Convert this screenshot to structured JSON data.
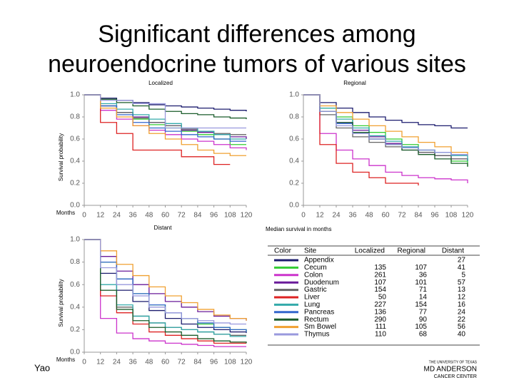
{
  "title": [
    "Significant differences among",
    "neuroendocrine tumors of various sites"
  ],
  "author": "Yao",
  "logo": [
    "THE UNIVERSITY OF TEXAS",
    "MD ANDERSON",
    "CANCER CENTER"
  ],
  "chart_data": [
    {
      "type": "line",
      "step": true,
      "title": "Localized",
      "xlabel": "Months",
      "ylabel": "Survival probability",
      "x": [
        0,
        12,
        24,
        36,
        48,
        60,
        72,
        84,
        96,
        108,
        120
      ],
      "xlim": [
        0,
        120
      ],
      "xticks": [
        0,
        12,
        24,
        36,
        48,
        60,
        72,
        84,
        96,
        108,
        120
      ],
      "ylim": [
        0,
        1
      ],
      "yticks": [
        {
          "value": 0,
          "label": "0.0"
        },
        0.2,
        0.4,
        0.6,
        0.8,
        {
          "value": 1,
          "label": "1.0"
        }
      ],
      "series": [
        {
          "name": "Appendix",
          "color": "#1c1c6e",
          "values": [
            1,
            0.97,
            0.95,
            0.93,
            0.91,
            0.9,
            0.89,
            0.88,
            0.87,
            0.86,
            0.85
          ]
        },
        {
          "name": "Cecum",
          "color": "#33cc33",
          "values": [
            1,
            0.9,
            0.84,
            0.78,
            0.73,
            0.7,
            0.67,
            0.64,
            0.6,
            0.55,
            0.55
          ]
        },
        {
          "name": "Colon",
          "color": "#cc33cc",
          "values": [
            1,
            0.86,
            0.78,
            0.72,
            0.68,
            0.64,
            0.6,
            0.58,
            0.55,
            0.52,
            0.5
          ]
        },
        {
          "name": "Duodenum",
          "color": "#6a1b9a",
          "values": [
            1,
            0.9,
            0.84,
            0.8,
            0.75,
            0.72,
            0.68,
            0.66,
            0.64,
            0.62,
            0.6
          ]
        },
        {
          "name": "Gastric",
          "color": "#666666",
          "values": [
            1,
            0.9,
            0.84,
            0.79,
            0.75,
            0.72,
            0.69,
            0.67,
            0.65,
            0.64,
            0.64
          ]
        },
        {
          "name": "Liver",
          "color": "#dd2222",
          "values": [
            1,
            0.75,
            0.65,
            0.5,
            0.5,
            0.5,
            0.44,
            0.44,
            0.37,
            0.37,
            null
          ]
        },
        {
          "name": "Lung",
          "color": "#33aaaa",
          "values": [
            1,
            0.92,
            0.87,
            0.82,
            0.78,
            0.74,
            0.7,
            0.67,
            0.64,
            0.6,
            0.6
          ]
        },
        {
          "name": "Pancreas",
          "color": "#3366cc",
          "values": [
            1,
            0.9,
            0.82,
            0.75,
            0.7,
            0.67,
            0.64,
            0.62,
            0.6,
            0.58,
            0.58
          ]
        },
        {
          "name": "Rectum",
          "color": "#1a5c2a",
          "values": [
            1,
            0.96,
            0.93,
            0.9,
            0.87,
            0.85,
            0.83,
            0.82,
            0.8,
            0.79,
            0.78
          ]
        },
        {
          "name": "Sm Bowel",
          "color": "#f0a030",
          "values": [
            1,
            0.88,
            0.8,
            0.72,
            0.65,
            0.6,
            0.55,
            0.5,
            0.47,
            0.45,
            0.45
          ]
        },
        {
          "name": "Thymus",
          "color": "#9999dd",
          "values": [
            1,
            0.95,
            0.95,
            0.92,
            0.92,
            0.7,
            0.7,
            0.7,
            0.7,
            0.7,
            0.7
          ]
        }
      ]
    },
    {
      "type": "line",
      "step": true,
      "title": "Regional",
      "x": [
        0,
        12,
        24,
        36,
        48,
        60,
        72,
        84,
        96,
        108,
        120
      ],
      "xlim": [
        0,
        120
      ],
      "xticks": [
        0,
        12,
        24,
        36,
        48,
        60,
        72,
        84,
        96,
        108,
        120
      ],
      "ylim": [
        0,
        1
      ],
      "yticks": [
        {
          "value": 0,
          "label": "0.0"
        },
        0.2,
        0.4,
        0.6,
        0.8,
        {
          "value": 1,
          "label": "1.0"
        }
      ],
      "series": [
        {
          "color": "#1c1c6e",
          "values": [
            1,
            0.93,
            0.88,
            0.84,
            0.8,
            0.77,
            0.75,
            0.73,
            0.72,
            0.7,
            0.7
          ]
        },
        {
          "color": "#33cc33",
          "values": [
            1,
            0.88,
            0.8,
            0.72,
            0.66,
            0.6,
            0.55,
            0.5,
            0.45,
            0.4,
            0.35
          ]
        },
        {
          "color": "#cc33cc",
          "values": [
            1,
            0.65,
            0.5,
            0.42,
            0.36,
            0.3,
            0.27,
            0.25,
            0.24,
            0.23,
            0.2
          ]
        },
        {
          "color": "#6a1b9a",
          "values": [
            1,
            0.85,
            0.75,
            0.68,
            0.62,
            0.56,
            0.52,
            0.48,
            0.45,
            0.42,
            0.4
          ]
        },
        {
          "color": "#666666",
          "values": [
            1,
            0.82,
            0.7,
            0.62,
            0.57,
            0.53,
            0.5,
            0.48,
            0.45,
            0.42,
            0.4
          ]
        },
        {
          "color": "#dd2222",
          "values": [
            1,
            0.55,
            0.38,
            0.3,
            0.25,
            0.2,
            0.2,
            0.18,
            null,
            null,
            null
          ]
        },
        {
          "color": "#33aaaa",
          "values": [
            1,
            0.88,
            0.78,
            0.7,
            0.63,
            0.58,
            0.53,
            0.5,
            0.48,
            0.45,
            0.4
          ]
        },
        {
          "color": "#3366cc",
          "values": [
            1,
            0.85,
            0.74,
            0.66,
            0.6,
            0.55,
            0.52,
            0.5,
            0.48,
            0.46,
            0.45
          ]
        },
        {
          "color": "#1a5c2a",
          "values": [
            1,
            0.85,
            0.75,
            0.66,
            0.6,
            0.55,
            0.5,
            0.46,
            0.42,
            0.38,
            0.35
          ]
        },
        {
          "color": "#f0a030",
          "values": [
            1,
            0.9,
            0.84,
            0.78,
            0.72,
            0.67,
            0.62,
            0.57,
            0.53,
            0.48,
            0.45
          ]
        },
        {
          "color": "#9999dd",
          "values": [
            1,
            0.85,
            0.72,
            0.65,
            0.6,
            0.55,
            0.52,
            0.5,
            0.48,
            0.46,
            0.45
          ]
        }
      ]
    },
    {
      "type": "line",
      "step": true,
      "title": "Distant",
      "xlabel": "Months",
      "ylabel": "Survival probability",
      "x": [
        0,
        12,
        24,
        36,
        48,
        60,
        72,
        84,
        96,
        108,
        120
      ],
      "xlim": [
        0,
        120
      ],
      "xticks": [
        0,
        12,
        24,
        36,
        48,
        60,
        72,
        84,
        96,
        108,
        120
      ],
      "ylim": [
        0,
        1
      ],
      "yticks": [
        {
          "value": 0,
          "label": "0.0"
        },
        0.2,
        0.4,
        0.6,
        0.8,
        {
          "value": 1,
          "label": "1.0"
        }
      ],
      "series": [
        {
          "color": "#1c1c6e",
          "values": [
            1,
            0.7,
            0.55,
            0.45,
            0.37,
            0.3,
            0.25,
            0.22,
            0.2,
            0.18,
            0.17
          ]
        },
        {
          "color": "#33cc33",
          "values": [
            1,
            0.8,
            0.65,
            0.52,
            0.42,
            0.35,
            0.3,
            0.25,
            0.22,
            0.2,
            0.18
          ]
        },
        {
          "color": "#cc33cc",
          "values": [
            1,
            0.3,
            0.17,
            0.12,
            0.1,
            0.08,
            0.07,
            0.06,
            0.05,
            0.05,
            0.05
          ]
        },
        {
          "color": "#6a1b9a",
          "values": [
            1,
            0.85,
            0.72,
            0.6,
            0.52,
            0.45,
            0.4,
            0.36,
            0.32,
            0.3,
            0.28
          ]
        },
        {
          "color": "#666666",
          "values": [
            1,
            0.55,
            0.4,
            0.32,
            0.26,
            0.22,
            0.2,
            0.18,
            0.16,
            0.15,
            0.15
          ]
        },
        {
          "color": "#dd2222",
          "values": [
            1,
            0.5,
            0.35,
            0.25,
            0.18,
            0.15,
            0.12,
            0.1,
            0.08,
            0.08,
            0.08
          ]
        },
        {
          "color": "#33aaaa",
          "values": [
            1,
            0.6,
            0.42,
            0.32,
            0.26,
            0.22,
            0.2,
            0.18,
            0.16,
            0.14,
            0.14
          ]
        },
        {
          "color": "#3366cc",
          "values": [
            1,
            0.8,
            0.65,
            0.52,
            0.42,
            0.35,
            0.3,
            0.26,
            0.22,
            0.2,
            0.18
          ]
        },
        {
          "color": "#1a5c2a",
          "values": [
            1,
            0.55,
            0.38,
            0.28,
            0.22,
            0.18,
            0.15,
            0.12,
            0.1,
            0.09,
            0.08
          ]
        },
        {
          "color": "#f0a030",
          "values": [
            1,
            0.9,
            0.78,
            0.68,
            0.58,
            0.5,
            0.44,
            0.38,
            0.33,
            0.3,
            0.28
          ]
        },
        {
          "color": "#9999dd",
          "values": [
            1,
            0.75,
            0.6,
            0.5,
            0.4,
            0.35,
            0.3,
            0.28,
            0.26,
            0.25,
            0.25
          ]
        }
      ]
    }
  ],
  "table": {
    "caption": "Median survival in months",
    "columns": [
      "Color",
      "Site",
      "Localized",
      "Regional",
      "Distant"
    ],
    "rows": [
      [
        null,
        null,
        27
      ],
      [
        135,
        107,
        41
      ],
      [
        261,
        36,
        5
      ],
      [
        107,
        101,
        57
      ],
      [
        154,
        71,
        13
      ],
      [
        50,
        14,
        12
      ],
      [
        227,
        154,
        16
      ],
      [
        136,
        77,
        24
      ],
      [
        290,
        90,
        22
      ],
      [
        111,
        105,
        56
      ],
      [
        110,
        68,
        40
      ]
    ]
  }
}
